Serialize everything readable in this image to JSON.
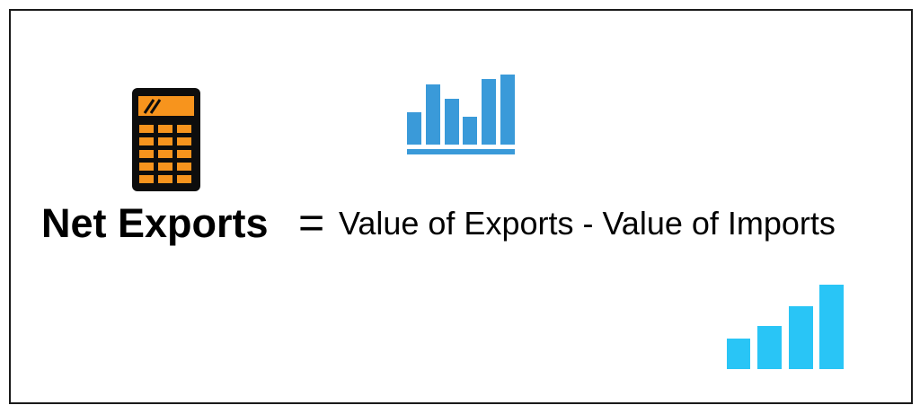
{
  "formula": {
    "lhs": "Net Exports",
    "operator": "=",
    "rhs": "Value of Exports - Value of Imports"
  },
  "icons": {
    "calculator": {
      "name": "calculator-icon",
      "body_color": "#0d0d0d",
      "key_color": "#f7941d"
    },
    "bar_chart_outline": {
      "name": "bar-chart-icon",
      "color": "#3a9ad9"
    },
    "bar_chart_rising": {
      "name": "rising-bars-icon",
      "color": "#29c5f6"
    }
  },
  "colors": {
    "border": "#1a1a1a",
    "background": "#ffffff",
    "text": "#000000"
  }
}
